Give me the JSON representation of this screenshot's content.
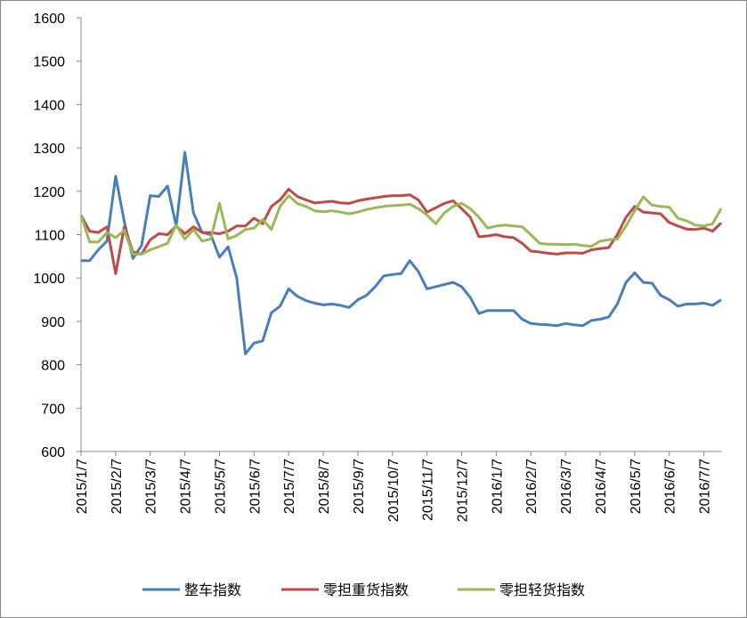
{
  "chart_data": {
    "type": "line",
    "categories": [
      "2015/1/7",
      null,
      null,
      null,
      "2015/2/7",
      null,
      null,
      null,
      "2015/3/7",
      null,
      null,
      null,
      "2015/4/7",
      null,
      null,
      null,
      "2015/5/7",
      null,
      null,
      null,
      "2015/6/7",
      null,
      null,
      null,
      "2015/7/7",
      null,
      null,
      null,
      "2015/8/7",
      null,
      null,
      null,
      "2015/9/7",
      null,
      null,
      null,
      "2015/10/7",
      null,
      null,
      null,
      "2015/11/7",
      null,
      null,
      null,
      "2015/12/7",
      null,
      null,
      null,
      "2016/1/7",
      null,
      null,
      null,
      "2016/2/7",
      null,
      null,
      null,
      "2016/3/7",
      null,
      null,
      null,
      "2016/4/7",
      null,
      null,
      null,
      "2016/5/7",
      null,
      null,
      null,
      "2016/6/7",
      null,
      null,
      null,
      "2016/7/7",
      null,
      null
    ],
    "series": [
      {
        "name": "整车指数",
        "color": "#4a7ebb",
        "values": [
          1040,
          1040,
          1065,
          1085,
          1235,
          1130,
          1045,
          1075,
          1190,
          1188,
          1212,
          1120,
          1290,
          1150,
          1105,
          1100,
          1048,
          1072,
          1000,
          825,
          850,
          855,
          920,
          935,
          975,
          958,
          948,
          942,
          938,
          940,
          937,
          932,
          950,
          960,
          980,
          1005,
          1008,
          1010,
          1040,
          1015,
          975,
          980,
          985,
          990,
          980,
          955,
          918,
          925,
          925,
          925,
          925,
          905,
          895,
          893,
          892,
          890,
          895,
          892,
          890,
          902,
          905,
          910,
          940,
          990,
          1012,
          990,
          988,
          960,
          950,
          935,
          940,
          940,
          942,
          937,
          950
        ]
      },
      {
        "name": "零担重货指数",
        "color": "#be4b48",
        "values": [
          1145,
          1108,
          1105,
          1118,
          1010,
          1118,
          1060,
          1055,
          1088,
          1102,
          1100,
          1120,
          1102,
          1118,
          1105,
          1105,
          1102,
          1108,
          1120,
          1120,
          1138,
          1125,
          1165,
          1180,
          1205,
          1188,
          1180,
          1173,
          1175,
          1177,
          1173,
          1172,
          1178,
          1182,
          1185,
          1188,
          1190,
          1190,
          1192,
          1180,
          1152,
          1162,
          1172,
          1178,
          1160,
          1140,
          1095,
          1097,
          1100,
          1095,
          1093,
          1080,
          1062,
          1060,
          1057,
          1055,
          1058,
          1058,
          1057,
          1065,
          1068,
          1070,
          1100,
          1140,
          1165,
          1152,
          1150,
          1148,
          1128,
          1120,
          1113,
          1112,
          1115,
          1108,
          1127
        ]
      },
      {
        "name": "零担轻货指数",
        "color": "#98b954",
        "values": [
          1145,
          1083,
          1083,
          1105,
          1093,
          1110,
          1055,
          1055,
          1065,
          1072,
          1080,
          1122,
          1090,
          1112,
          1085,
          1090,
          1172,
          1090,
          1098,
          1112,
          1115,
          1135,
          1112,
          1165,
          1190,
          1172,
          1165,
          1155,
          1153,
          1155,
          1152,
          1148,
          1152,
          1158,
          1162,
          1165,
          1167,
          1168,
          1170,
          1160,
          1145,
          1125,
          1150,
          1165,
          1172,
          1160,
          1140,
          1115,
          1120,
          1122,
          1120,
          1118,
          1100,
          1080,
          1078,
          1078,
          1077,
          1078,
          1075,
          1073,
          1085,
          1088,
          1090,
          1120,
          1155,
          1187,
          1168,
          1165,
          1163,
          1138,
          1132,
          1122,
          1120,
          1125,
          1160
        ]
      }
    ],
    "ylim": [
      600,
      1600
    ],
    "yticks": [
      600,
      700,
      800,
      900,
      1000,
      1100,
      1200,
      1300,
      1400,
      1500,
      1600
    ],
    "legend": "bottom"
  }
}
